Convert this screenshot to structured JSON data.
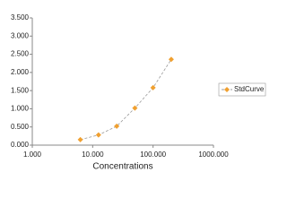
{
  "chart_data": {
    "type": "scatter",
    "x_label": "Concentrations",
    "xscale": "log",
    "x": [
      6.25,
      12.5,
      25,
      50,
      100,
      200
    ],
    "series": [
      {
        "name": "StdCurve",
        "color": "#f0a030",
        "line_color": "#999999",
        "values": [
          0.15,
          0.28,
          0.52,
          1.02,
          1.58,
          2.36
        ]
      }
    ],
    "xlim": [
      1,
      1000
    ],
    "xticks": [
      {
        "value": 1,
        "label": "1.000"
      },
      {
        "value": 10,
        "label": "10.000"
      },
      {
        "value": 100,
        "label": "100.000"
      },
      {
        "value": 1000,
        "label": "1000.000"
      }
    ],
    "ylim": [
      0,
      3.5
    ],
    "yticks": [
      {
        "value": 0,
        "label": "0.000"
      },
      {
        "value": 0.5,
        "label": "0.500"
      },
      {
        "value": 1,
        "label": "1.000"
      },
      {
        "value": 1.5,
        "label": "1.500"
      },
      {
        "value": 2,
        "label": "2.000"
      },
      {
        "value": 2.5,
        "label": "2.500"
      },
      {
        "value": 3,
        "label": "3.000"
      },
      {
        "value": 3.5,
        "label": "3.500"
      }
    ],
    "legend": "right"
  }
}
